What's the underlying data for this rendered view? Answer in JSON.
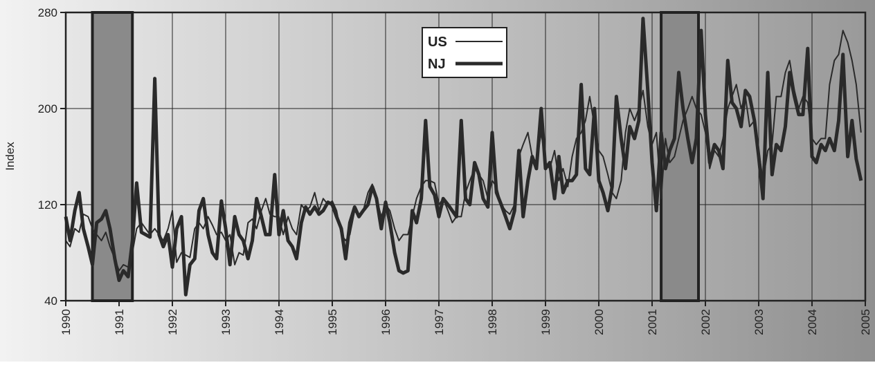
{
  "chart_data": {
    "type": "line",
    "ylabel": "Index",
    "xlim": [
      1990,
      2005
    ],
    "xticks": [
      1990,
      1991,
      1992,
      1993,
      1994,
      1995,
      1996,
      1997,
      1998,
      1999,
      2000,
      2001,
      2002,
      2003,
      2004,
      2005
    ],
    "ylim": [
      40,
      280
    ],
    "yticks": [
      40,
      120,
      200,
      280
    ],
    "grid": true,
    "legend": "top-center",
    "shaded_regions": [
      [
        1990.5,
        1991.25
      ],
      [
        2001.17,
        2001.87
      ]
    ],
    "x": [
      1990,
      1990.08,
      1990.17,
      1990.25,
      1990.33,
      1990.42,
      1990.5,
      1990.58,
      1990.67,
      1990.75,
      1990.83,
      1990.92,
      1991,
      1991.08,
      1991.17,
      1991.25,
      1991.33,
      1991.42,
      1991.5,
      1991.58,
      1991.67,
      1991.75,
      1991.83,
      1991.92,
      1992,
      1992.08,
      1992.17,
      1992.25,
      1992.33,
      1992.42,
      1992.5,
      1992.58,
      1992.67,
      1992.75,
      1992.83,
      1992.92,
      1993,
      1993.08,
      1993.17,
      1993.25,
      1993.33,
      1993.42,
      1993.5,
      1993.58,
      1993.67,
      1993.75,
      1993.83,
      1993.92,
      1994,
      1994.08,
      1994.17,
      1994.25,
      1994.33,
      1994.42,
      1994.5,
      1994.58,
      1994.67,
      1994.75,
      1994.83,
      1994.92,
      1995,
      1995.08,
      1995.17,
      1995.25,
      1995.33,
      1995.42,
      1995.5,
      1995.58,
      1995.67,
      1995.75,
      1995.83,
      1995.92,
      1996,
      1996.08,
      1996.17,
      1996.25,
      1996.33,
      1996.42,
      1996.5,
      1996.58,
      1996.67,
      1996.75,
      1996.83,
      1996.92,
      1997,
      1997.08,
      1997.17,
      1997.25,
      1997.33,
      1997.42,
      1997.5,
      1997.58,
      1997.67,
      1997.75,
      1997.83,
      1997.92,
      1998,
      1998.08,
      1998.17,
      1998.25,
      1998.33,
      1998.42,
      1998.5,
      1998.58,
      1998.67,
      1998.75,
      1998.83,
      1998.92,
      1999,
      1999.08,
      1999.17,
      1999.25,
      1999.33,
      1999.42,
      1999.5,
      1999.58,
      1999.67,
      1999.75,
      1999.83,
      1999.92,
      2000,
      2000.08,
      2000.17,
      2000.25,
      2000.33,
      2000.42,
      2000.5,
      2000.58,
      2000.67,
      2000.75,
      2000.83,
      2000.92,
      2001,
      2001.08,
      2001.17,
      2001.25,
      2001.33,
      2001.42,
      2001.5,
      2001.58,
      2001.67,
      2001.75,
      2001.83,
      2001.92,
      2002,
      2002.08,
      2002.17,
      2002.25,
      2002.33,
      2002.42,
      2002.5,
      2002.58,
      2002.67,
      2002.75,
      2002.83,
      2002.92,
      2003,
      2003.08,
      2003.17,
      2003.25,
      2003.33,
      2003.42,
      2003.5,
      2003.58,
      2003.67,
      2003.75,
      2003.83,
      2003.92,
      2004,
      2004.08,
      2004.17,
      2004.25,
      2004.33,
      2004.42,
      2004.5,
      2004.58,
      2004.67,
      2004.75,
      2004.83,
      2004.92
    ],
    "series": [
      {
        "name": "US",
        "color": "#2a2a2a",
        "width": 2,
        "values": [
          90,
          85,
          100,
          97,
          112,
          110,
          100,
          95,
          90,
          97,
          85,
          75,
          65,
          70,
          68,
          80,
          100,
          105,
          100,
          95,
          100,
          95,
          90,
          100,
          115,
          72,
          80,
          78,
          76,
          100,
          105,
          100,
          110,
          103,
          95,
          97,
          90,
          95,
          70,
          80,
          78,
          105,
          108,
          100,
          115,
          125,
          112,
          110,
          110,
          95,
          110,
          100,
          95,
          120,
          115,
          118,
          130,
          115,
          125,
          120,
          123,
          115,
          95,
          90,
          95,
          115,
          110,
          115,
          130,
          137,
          125,
          110,
          120,
          115,
          100,
          90,
          95,
          95,
          110,
          125,
          135,
          140,
          140,
          138,
          120,
          125,
          115,
          105,
          110,
          110,
          130,
          140,
          150,
          145,
          140,
          125,
          140,
          135,
          120,
          115,
          112,
          120,
          160,
          170,
          180,
          160,
          155,
          180,
          155,
          150,
          165,
          140,
          150,
          135,
          160,
          175,
          180,
          190,
          210,
          185,
          165,
          160,
          145,
          130,
          125,
          140,
          180,
          200,
          190,
          200,
          215,
          185,
          170,
          180,
          125,
          175,
          155,
          160,
          175,
          190,
          200,
          210,
          200,
          195,
          180,
          150,
          165,
          160,
          175,
          200,
          210,
          220,
          200,
          210,
          185,
          190,
          165,
          140,
          165,
          170,
          210,
          210,
          230,
          240,
          215,
          200,
          210,
          205,
          175,
          170,
          175,
          175,
          220,
          240,
          245,
          265,
          255,
          240,
          220,
          180
        ]
      },
      {
        "name": "NJ",
        "color": "#2a2a2a",
        "width": 5,
        "values": [
          110,
          90,
          115,
          130,
          100,
          85,
          70,
          105,
          108,
          115,
          100,
          75,
          57,
          65,
          60,
          90,
          138,
          97,
          95,
          93,
          225,
          95,
          85,
          95,
          68,
          100,
          110,
          45,
          70,
          75,
          115,
          125,
          95,
          80,
          75,
          123,
          100,
          70,
          110,
          95,
          90,
          75,
          90,
          125,
          110,
          95,
          95,
          145,
          95,
          115,
          90,
          85,
          75,
          105,
          118,
          112,
          118,
          112,
          115,
          122,
          120,
          110,
          100,
          75,
          105,
          118,
          110,
          115,
          120,
          135,
          125,
          100,
          122,
          105,
          80,
          65,
          63,
          65,
          115,
          105,
          125,
          190,
          135,
          128,
          110,
          125,
          120,
          115,
          110,
          190,
          125,
          120,
          155,
          145,
          125,
          118,
          180,
          130,
          120,
          110,
          100,
          115,
          165,
          110,
          140,
          160,
          150,
          200,
          150,
          155,
          125,
          160,
          130,
          140,
          140,
          145,
          220,
          150,
          145,
          200,
          140,
          130,
          115,
          135,
          210,
          175,
          150,
          185,
          175,
          190,
          275,
          215,
          155,
          115,
          180,
          150,
          165,
          175,
          230,
          200,
          175,
          155,
          175,
          265,
          195,
          155,
          170,
          165,
          150,
          240,
          205,
          200,
          185,
          215,
          210,
          190,
          160,
          125,
          230,
          145,
          170,
          165,
          185,
          230,
          210,
          195,
          195,
          250,
          160,
          155,
          170,
          165,
          175,
          165,
          190,
          245,
          160,
          190,
          158,
          140
        ]
      }
    ]
  }
}
